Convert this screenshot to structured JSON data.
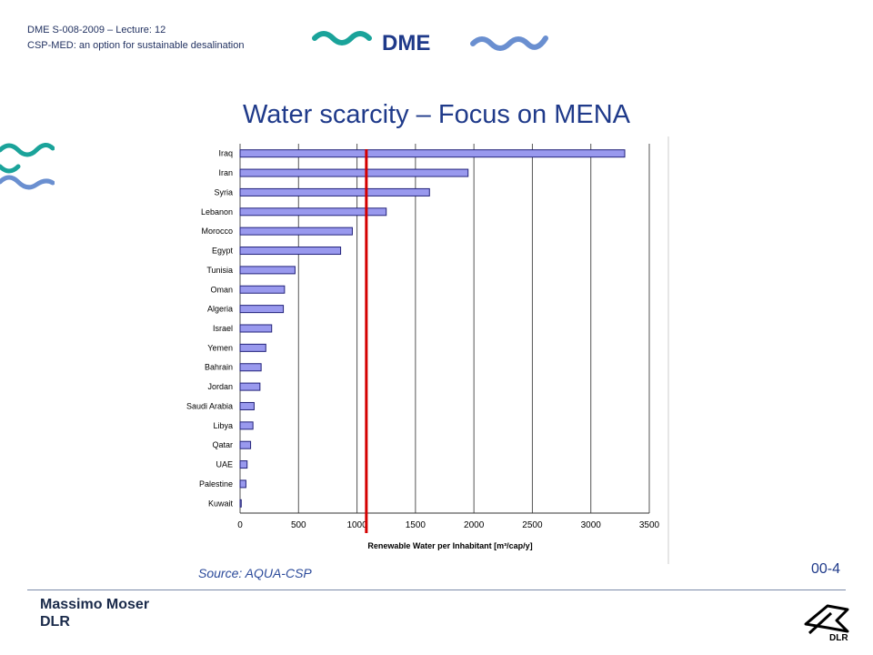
{
  "header": {
    "line1": "DME S-008-2009 – Lecture: 12",
    "line2": "CSP-MED: an option for sustainable desalination",
    "logo_text": "DME"
  },
  "title": "Water scarcity – Focus on MENA",
  "source": "Source: AQUA-CSP",
  "slide_number": "00-4",
  "footer": {
    "author": "Massimo Moser",
    "organization": "DLR",
    "dlr_logo_text": "DLR"
  },
  "colors": {
    "bar": "#9999ee",
    "bar_stroke": "#22227a",
    "threshold": "#d40000",
    "title": "#1f3a8a",
    "waves_teal": "#1aa39a",
    "waves_blue": "#6a8fd0"
  },
  "chart_data": {
    "type": "bar",
    "orientation": "horizontal",
    "categories": [
      "Iraq",
      "Iran",
      "Syria",
      "Lebanon",
      "Morocco",
      "Egypt",
      "Tunisia",
      "Oman",
      "Algeria",
      "Israel",
      "Yemen",
      "Bahrain",
      "Jordan",
      "Saudi Arabia",
      "Libya",
      "Qatar",
      "UAE",
      "Palestine",
      "Kuwait"
    ],
    "values": [
      3290,
      1950,
      1620,
      1250,
      960,
      860,
      470,
      380,
      370,
      270,
      220,
      180,
      170,
      120,
      110,
      90,
      60,
      50,
      10
    ],
    "xlabel": "Renewable Water per Inhabitant [m³/cap/y]",
    "xticks": [
      0,
      500,
      1000,
      1500,
      2000,
      2500,
      3000,
      3500
    ],
    "xlim": [
      0,
      3500
    ],
    "threshold_line": 1080,
    "grid": "vertical"
  }
}
